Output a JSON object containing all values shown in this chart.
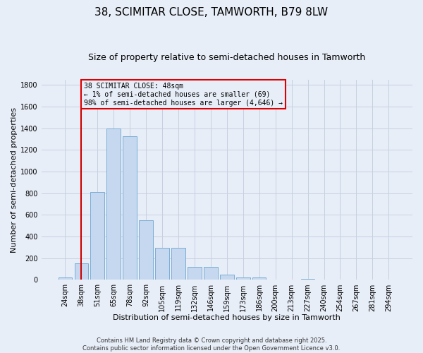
{
  "title": "38, SCIMITAR CLOSE, TAMWORTH, B79 8LW",
  "subtitle": "Size of property relative to semi-detached houses in Tamworth",
  "xlabel": "Distribution of semi-detached houses by size in Tamworth",
  "ylabel": "Number of semi-detached properties",
  "footer_line1": "Contains HM Land Registry data © Crown copyright and database right 2025.",
  "footer_line2": "Contains public sector information licensed under the Open Government Licence v3.0.",
  "categories": [
    "24sqm",
    "38sqm",
    "51sqm",
    "65sqm",
    "78sqm",
    "92sqm",
    "105sqm",
    "119sqm",
    "132sqm",
    "146sqm",
    "159sqm",
    "173sqm",
    "186sqm",
    "200sqm",
    "213sqm",
    "227sqm",
    "240sqm",
    "254sqm",
    "267sqm",
    "281sqm",
    "294sqm"
  ],
  "values": [
    20,
    150,
    810,
    1400,
    1330,
    550,
    295,
    295,
    120,
    120,
    48,
    25,
    25,
    5,
    5,
    10,
    5,
    0,
    0,
    5,
    0
  ],
  "bar_color": "#c5d8f0",
  "bar_edge_color": "#7aadd4",
  "grid_color": "#c8d0e0",
  "annotation_box_text": "38 SCIMITAR CLOSE: 48sqm\n← 1% of semi-detached houses are smaller (69)\n98% of semi-detached houses are larger (4,646) →",
  "annotation_box_color": "#dd0000",
  "vline_x_index": 1,
  "vline_color": "#cc0000",
  "ylim": [
    0,
    1850
  ],
  "yticks": [
    0,
    200,
    400,
    600,
    800,
    1000,
    1200,
    1400,
    1600,
    1800
  ],
  "background_color": "#e8eef8",
  "title_fontsize": 11,
  "subtitle_fontsize": 9,
  "tick_fontsize": 7,
  "label_fontsize": 8
}
